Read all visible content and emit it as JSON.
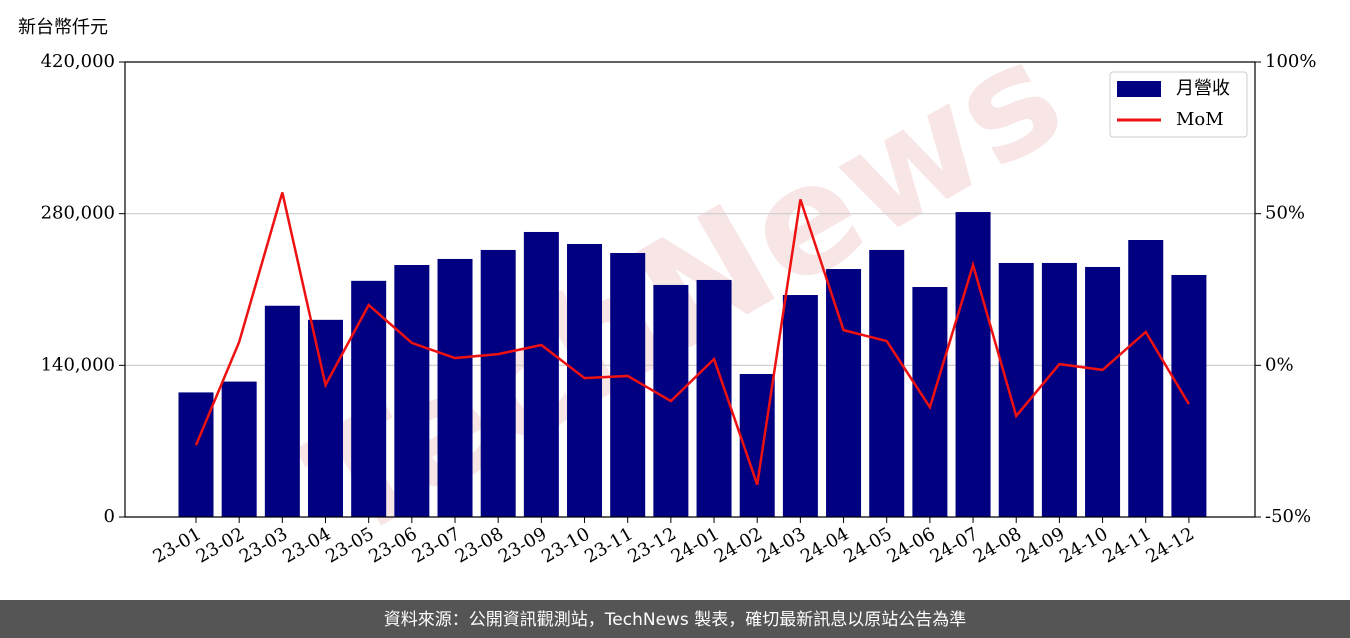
{
  "chart_data": {
    "type": "bar-line",
    "y_label": "新台幣仟元",
    "watermark": "TechNews",
    "source": "資料來源：公開資訊觀測站，TechNews 製表，確切最新訊息以原站公告為準",
    "categories": [
      "23-01",
      "23-02",
      "23-03",
      "23-04",
      "23-05",
      "23-06",
      "23-07",
      "23-08",
      "23-09",
      "23-10",
      "23-11",
      "23-12",
      "24-01",
      "24-02",
      "24-03",
      "24-04",
      "24-05",
      "24-06",
      "24-07",
      "24-08",
      "24-09",
      "24-10",
      "24-11",
      "24-12"
    ],
    "series": [
      {
        "name": "月營收",
        "type": "bar",
        "color": "#000080",
        "values": [
          115000,
          125000,
          195000,
          182000,
          218000,
          232600,
          238200,
          246500,
          263100,
          252000,
          243700,
          214200,
          218800,
          132000,
          204900,
          228900,
          246500,
          212300,
          281500,
          234500,
          234500,
          230800,
          255700,
          223400
        ]
      },
      {
        "name": "MoM",
        "type": "line",
        "axis": "y2",
        "color": "#ee1111",
        "values": [
          -26.3,
          7.7,
          57,
          -6.5,
          19.9,
          7.4,
          2.4,
          3.7,
          6.7,
          -4.2,
          -3.5,
          -11.8,
          2.1,
          -39.3,
          54.7,
          11.6,
          8.0,
          -13.8,
          33.1,
          -16.7,
          0.4,
          -1.5,
          11.0,
          -12.8
        ]
      }
    ],
    "ylim": [
      0,
      420000
    ],
    "yticks": [
      0,
      {
        "value": 140000,
        "label": "140,000"
      },
      {
        "value": 280000,
        "label": "280,000"
      },
      {
        "value": 420000,
        "label": "420,000"
      }
    ],
    "y2lim": [
      -50,
      100
    ],
    "y2ticks": [
      {
        "value": -50,
        "label": "-50%"
      },
      {
        "value": 0,
        "label": "0%"
      },
      {
        "value": 50,
        "label": "50%"
      },
      {
        "value": 100,
        "label": "100%"
      }
    ],
    "grid": true,
    "legend": "upper right"
  }
}
